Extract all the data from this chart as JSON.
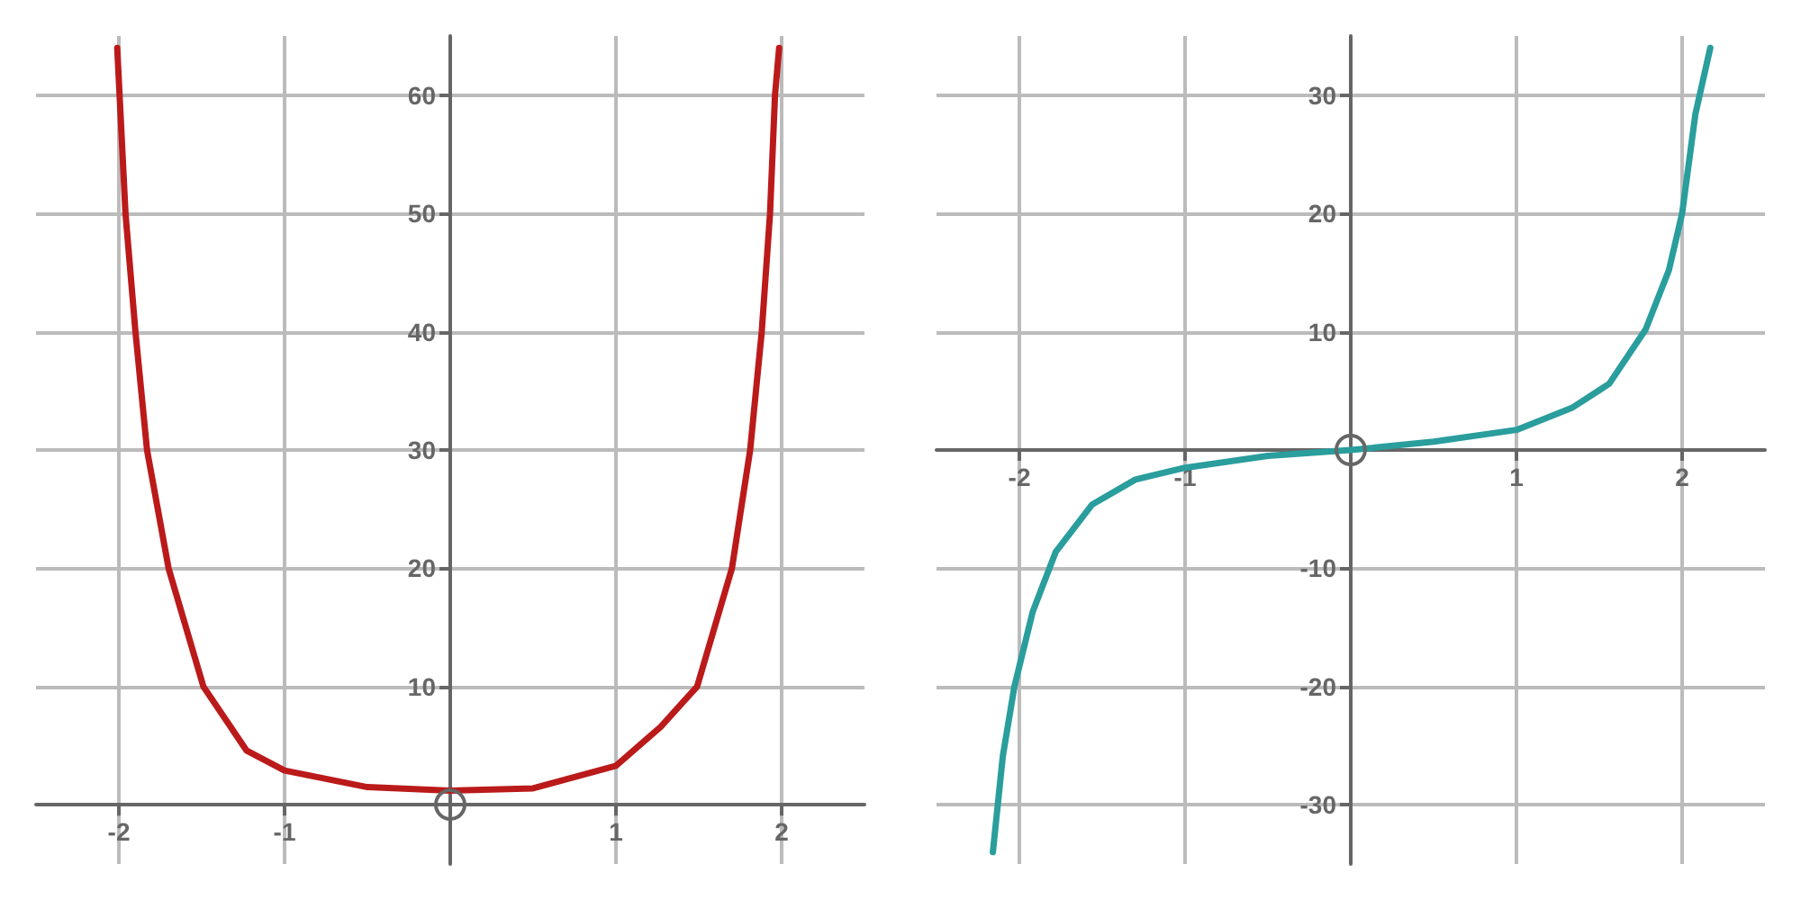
{
  "chart_data": [
    {
      "type": "line",
      "x": [
        -2.01,
        -1.96,
        -1.9,
        -1.83,
        -1.7,
        -1.49,
        -1.23,
        -1,
        -0.5,
        0,
        0.5,
        1,
        1.27,
        1.49,
        1.7,
        1.81,
        1.88,
        1.93,
        1.96,
        1.985
      ],
      "values": [
        64,
        50,
        40,
        30,
        20,
        10,
        4.6,
        2.9,
        1.5,
        1.2,
        1.4,
        3.3,
        6.6,
        10,
        20,
        30,
        40,
        50,
        60,
        64
      ],
      "color": "#bb1a1a",
      "xlim": [
        -2.5,
        2.5
      ],
      "ylim": [
        -5,
        65
      ],
      "xticks": [
        -2,
        -1,
        1,
        2
      ],
      "yticks": [
        10,
        20,
        30,
        40,
        50,
        60
      ],
      "grid": true,
      "marker": "none",
      "line_style": "solid"
    },
    {
      "type": "line",
      "x": [
        -2.16,
        -2.1,
        -2.03,
        -1.92,
        -1.78,
        -1.56,
        -1.3,
        -1,
        -0.5,
        0,
        0.5,
        1,
        1.34,
        1.56,
        1.78,
        1.92,
        2,
        2.08,
        2.17
      ],
      "values": [
        -34,
        -25.9,
        -20,
        -13.7,
        -8.6,
        -4.6,
        -2.5,
        -1.5,
        -0.5,
        0,
        0.7,
        1.7,
        3.6,
        5.6,
        10.2,
        15.2,
        20,
        28.4,
        34
      ],
      "color": "#2a9d9d",
      "xlim": [
        -2.5,
        2.5
      ],
      "ylim": [
        -35,
        35
      ],
      "xticks": [
        -2,
        -1,
        1,
        2
      ],
      "yticks": [
        -30,
        -20,
        -10,
        10,
        20,
        30
      ],
      "grid": true,
      "marker": "none",
      "line_style": "solid"
    }
  ]
}
